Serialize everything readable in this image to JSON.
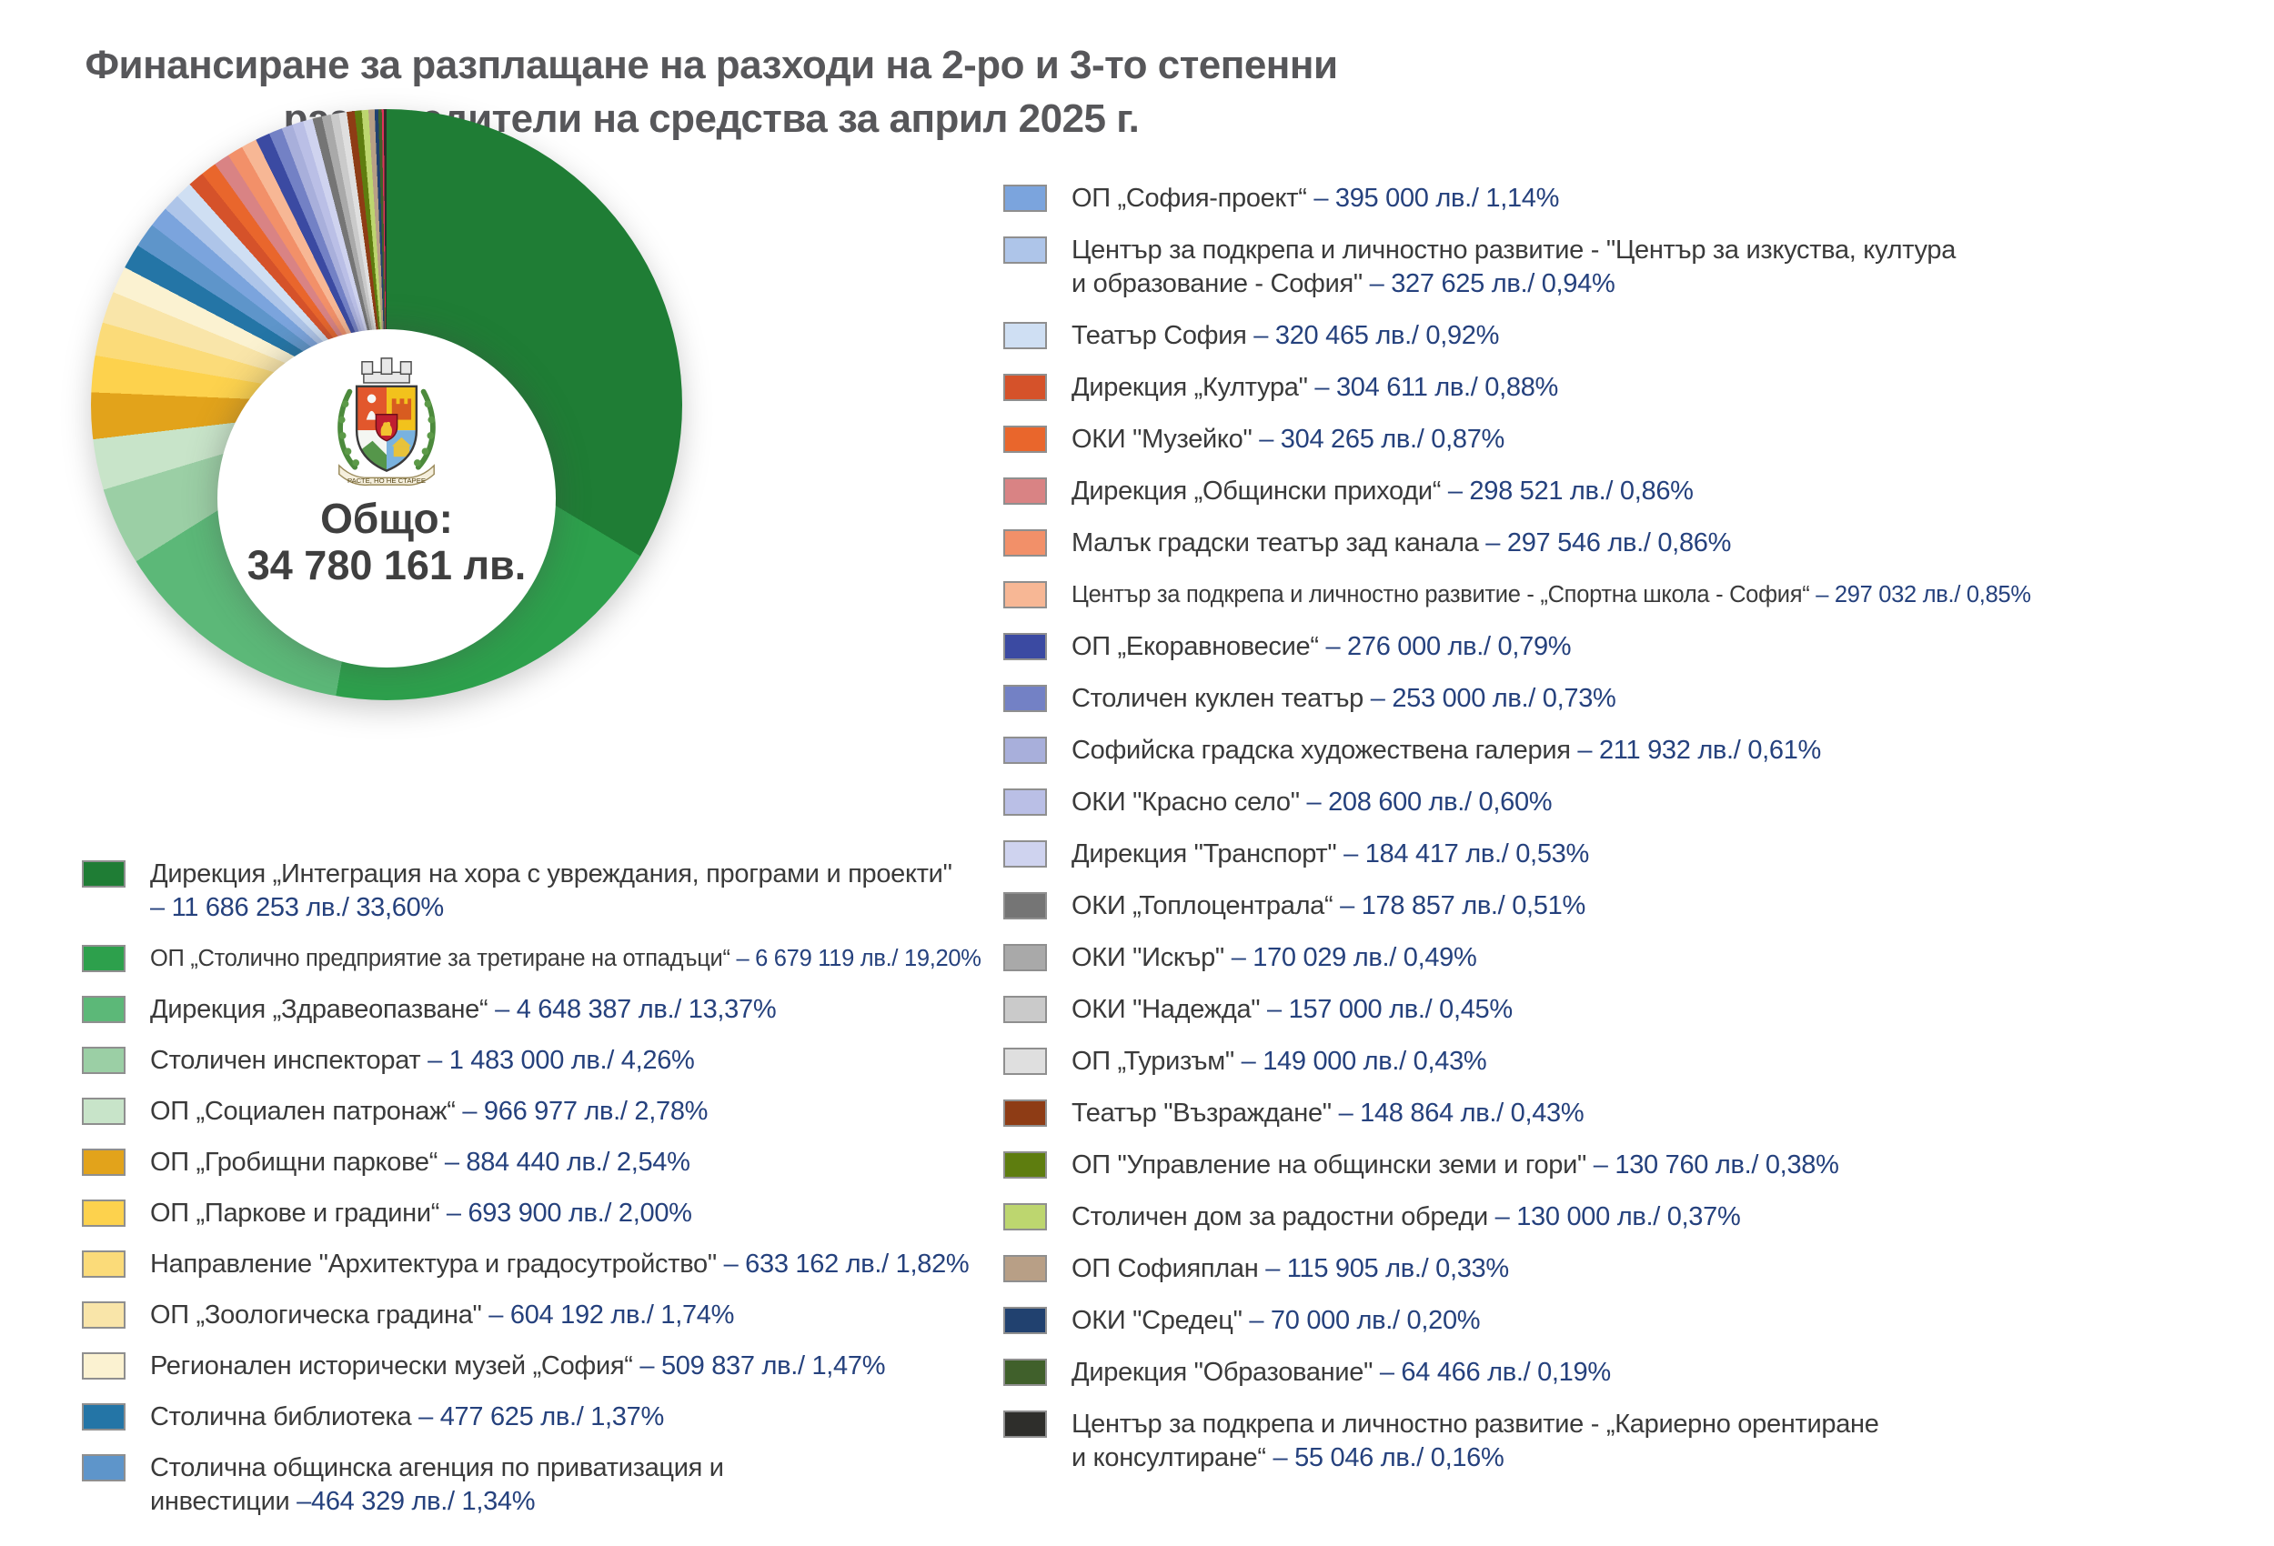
{
  "title": {
    "line1": "Финансиране за разплащане на разходи на 2-ро и 3-то степенни",
    "line2": "разпоредители на средства за април 2025 г."
  },
  "donut": {
    "center_label": "Общо:",
    "center_value": "34 780 161 лв."
  },
  "emblem": {
    "motto": "РАСТЕ, НО НЕ СТАРЕЕ"
  },
  "colors": {
    "title_text": "#57575a",
    "label_text": "#3a3a3a",
    "value_text": "#25417d"
  },
  "chart_data": {
    "type": "pie",
    "donut": true,
    "start_angle_deg": 0,
    "direction": "clockwise",
    "unit": "лв.",
    "total_value": 34780161,
    "total_text": "Общо: 34 780 161 лв.",
    "legend_position": "left-bottom and right columns",
    "slices": [
      {
        "label": "Дирекция „Интеграция на хора с увреждания, програми и проекти\"\n",
        "value_text": "– 11 686 253 лв./ 33,60%",
        "amount_lv": 11686253,
        "pct": 33.6,
        "color": "#1f7d35",
        "column": "left"
      },
      {
        "label": "ОП  „Столично предприятие за третиране на отпадъци“",
        "value_text": "– 6 679 119 лв./ 19,20%",
        "amount_lv": 6679119,
        "pct": 19.2,
        "color": "#2da04c",
        "column": "left"
      },
      {
        "label": "Дирекция „Здравеопазване“",
        "value_text": "– 4 648 387 лв./ 13,37%",
        "amount_lv": 4648387,
        "pct": 13.37,
        "color": "#5cb878",
        "column": "left"
      },
      {
        "label": "Столичен инспекторат",
        "value_text": "– 1 483 000 лв./ 4,26%",
        "amount_lv": 1483000,
        "pct": 4.26,
        "color": "#9bcfa5",
        "column": "left"
      },
      {
        "label": "ОП „Социален патронаж“",
        "value_text": "– 966 977 лв./ 2,78%",
        "amount_lv": 966977,
        "pct": 2.78,
        "color": "#c8e4c9",
        "column": "left"
      },
      {
        "label": "ОП „Гробищни паркове“",
        "value_text": "– 884 440 лв./ 2,54%",
        "amount_lv": 884440,
        "pct": 2.54,
        "color": "#e2a31b",
        "column": "left"
      },
      {
        "label": "ОП „Паркове и градини“",
        "value_text": "– 693 900 лв./ 2,00%",
        "amount_lv": 693900,
        "pct": 2.0,
        "color": "#fdd24d",
        "column": "left"
      },
      {
        "label": "Направление \"Архитектура и градосутройство\"",
        "value_text": "– 633 162 лв./ 1,82%",
        "amount_lv": 633162,
        "pct": 1.82,
        "color": "#fbdb79",
        "column": "left"
      },
      {
        "label": "ОП „Зоологическа градина\"",
        "value_text": "– 604 192 лв./ 1,74%",
        "amount_lv": 604192,
        "pct": 1.74,
        "color": "#f9e5a9",
        "column": "left"
      },
      {
        "label": "Регионален исторически музей „София“",
        "value_text": "– 509 837 лв./ 1,47%",
        "amount_lv": 509837,
        "pct": 1.47,
        "color": "#fbf2d1",
        "column": "left"
      },
      {
        "label": "Столична библиотека",
        "value_text": "– 477 625 лв./ 1,37%",
        "amount_lv": 477625,
        "pct": 1.37,
        "color": "#2475a6",
        "column": "left"
      },
      {
        "label": "Столична общинска агенция по приватизация и\nинвестиции",
        "value_text": "–464 329 лв./ 1,34%",
        "amount_lv": 464329,
        "pct": 1.34,
        "color": "#5e95ca",
        "column": "left"
      },
      {
        "label": "ОП  „София-проект“",
        "value_text": "– 395 000 лв./ 1,14%",
        "amount_lv": 395000,
        "pct": 1.14,
        "color": "#7ba4dd",
        "column": "right"
      },
      {
        "label": "Център за подкрепа и личностно развитие - \"Център за изкуства, култура\nи образование - София\"",
        "value_text": "– 327 625 лв./ 0,94%",
        "amount_lv": 327625,
        "pct": 0.94,
        "color": "#aec5e9",
        "column": "right"
      },
      {
        "label": "Театър София",
        "value_text": "– 320 465 лв./ 0,92%",
        "amount_lv": 320465,
        "pct": 0.92,
        "color": "#cfdff3",
        "column": "right"
      },
      {
        "label": "Дирекция „Култура\"",
        "value_text": "– 304 611 лв./ 0,88%",
        "amount_lv": 304611,
        "pct": 0.88,
        "color": "#d5522a",
        "column": "right"
      },
      {
        "label": "ОКИ \"Музейко\"",
        "value_text": "– 304 265 лв./ 0,87%",
        "amount_lv": 304265,
        "pct": 0.87,
        "color": "#e9662c",
        "column": "right"
      },
      {
        "label": "Дирекция „Общински приходи“",
        "value_text": "– 298 521 лв./ 0,86%",
        "amount_lv": 298521,
        "pct": 0.86,
        "color": "#d98384",
        "column": "right"
      },
      {
        "label": "Малък градски театър зад канала",
        "value_text": "– 297 546 лв./ 0,86%",
        "amount_lv": 297546,
        "pct": 0.86,
        "color": "#f29069",
        "column": "right"
      },
      {
        "label": "Център за подкрепа и личностно развитие - „Спортна школа - София“",
        "value_text": "– 297 032 лв./ 0,85%",
        "amount_lv": 297032,
        "pct": 0.85,
        "color": "#f7b795",
        "column": "right"
      },
      {
        "label": "ОП  „Екоравновесие“",
        "value_text": "– 276 000 лв./ 0,79%",
        "amount_lv": 276000,
        "pct": 0.79,
        "color": "#3b4aa2",
        "column": "right"
      },
      {
        "label": "Столичен куклен театър",
        "value_text": "– 253 000 лв./ 0,73%",
        "amount_lv": 253000,
        "pct": 0.73,
        "color": "#7381c5",
        "column": "right"
      },
      {
        "label": "Софийска градска художествена галерия",
        "value_text": "– 211 932 лв./ 0,61%",
        "amount_lv": 211932,
        "pct": 0.61,
        "color": "#a8afdb",
        "column": "right"
      },
      {
        "label": "ОКИ \"Красно село\"",
        "value_text": "– 208 600 лв./ 0,60%",
        "amount_lv": 208600,
        "pct": 0.6,
        "color": "#babfe6",
        "column": "right"
      },
      {
        "label": "Дирекция \"Транспорт\"",
        "value_text": "– 184 417 лв./ 0,53%",
        "amount_lv": 184417,
        "pct": 0.53,
        "color": "#cfd3ef",
        "column": "right"
      },
      {
        "label": "ОКИ „Топлоцентрала“",
        "value_text": "– 178 857 лв./ 0,51%",
        "amount_lv": 178857,
        "pct": 0.51,
        "color": "#757575",
        "column": "right"
      },
      {
        "label": "ОКИ \"Искър\"",
        "value_text": "– 170 029 лв./ 0,49%",
        "amount_lv": 170029,
        "pct": 0.49,
        "color": "#a9a9a9",
        "column": "right"
      },
      {
        "label": "ОКИ \"Надежда\"",
        "value_text": "– 157 000 лв./ 0,45%",
        "amount_lv": 157000,
        "pct": 0.45,
        "color": "#cacaca",
        "column": "right"
      },
      {
        "label": "ОП „Туризъм\"",
        "value_text": "– 149 000 лв./ 0,43%",
        "amount_lv": 149000,
        "pct": 0.43,
        "color": "#dfdfdf",
        "column": "right"
      },
      {
        "label": "Театър \"Възраждане\"",
        "value_text": "– 148 864 лв./ 0,43%",
        "amount_lv": 148864,
        "pct": 0.43,
        "color": "#8e3c15",
        "column": "right"
      },
      {
        "label": "ОП \"Управление на общински земи и гори\"",
        "value_text": "– 130 760 лв./ 0,38%",
        "amount_lv": 130760,
        "pct": 0.38,
        "color": "#5e7d0f",
        "column": "right"
      },
      {
        "label": "Столичен дом за радостни обреди",
        "value_text": "– 130 000 лв./ 0,37%",
        "amount_lv": 130000,
        "pct": 0.37,
        "color": "#bdd66f",
        "column": "right"
      },
      {
        "label": "ОП Софияплан",
        "value_text": "– 115 905 лв./ 0,33%",
        "amount_lv": 115905,
        "pct": 0.33,
        "color": "#b89f86",
        "column": "right"
      },
      {
        "label": "ОКИ \"Средец\"",
        "value_text": "– 70 000 лв./ 0,20%",
        "amount_lv": 70000,
        "pct": 0.2,
        "color": "#21416f",
        "column": "right"
      },
      {
        "label": "Дирекция \"Образование\"",
        "value_text": "– 64 466 лв./ 0,19%",
        "amount_lv": 64466,
        "pct": 0.19,
        "color": "#40602b",
        "column": "right"
      },
      {
        "label": "",
        "value_text": "",
        "amount_lv": null,
        "pct": 0.1,
        "color": "#e23158",
        "column": "",
        "in_legend": false
      },
      {
        "label": "Център за подкрепа и личностно развитие - „Кариерно орентиране\nи консултиране“",
        "value_text": "– 55 046 лв./ 0,16%",
        "amount_lv": 55046,
        "pct": 0.16,
        "color": "#2e2e2b",
        "column": "right"
      }
    ]
  }
}
